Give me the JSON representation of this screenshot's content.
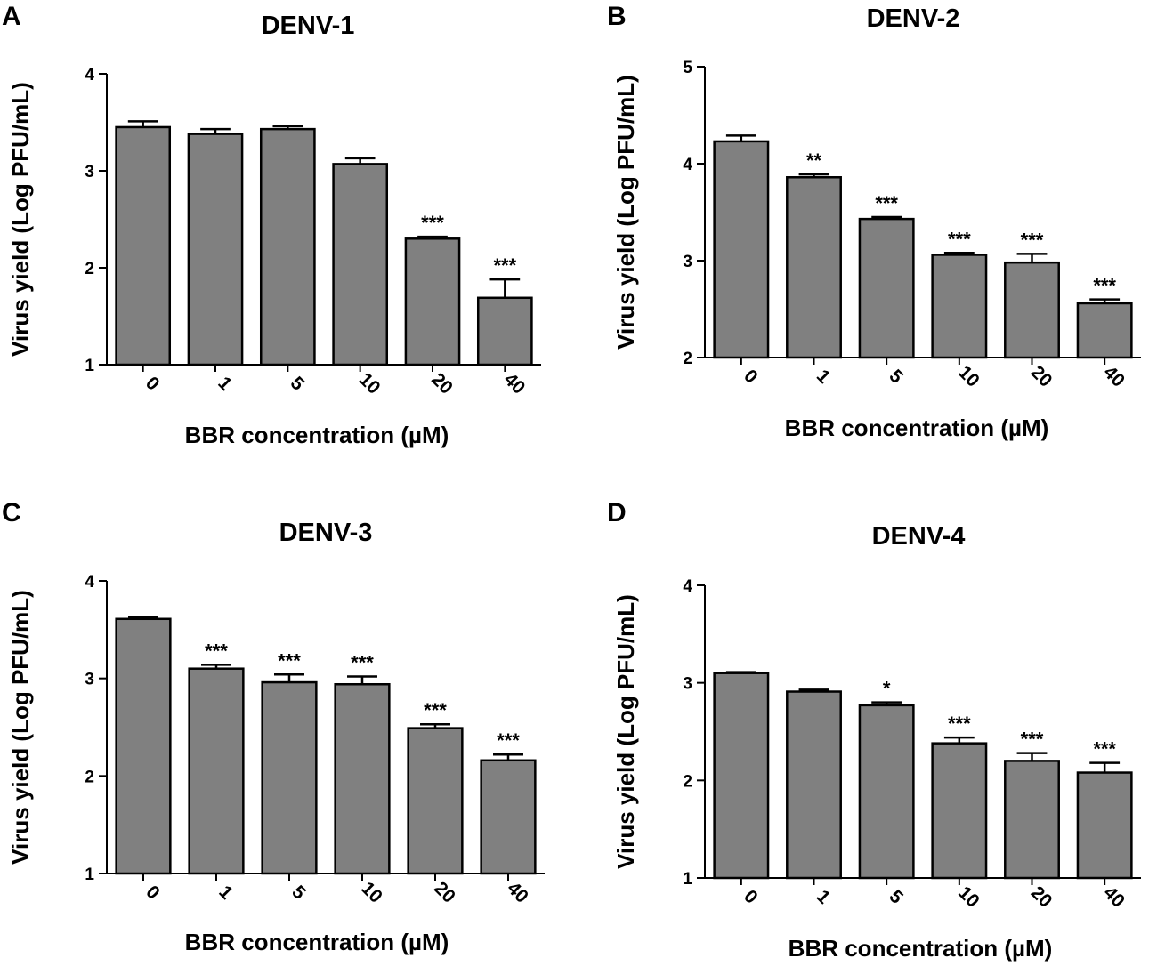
{
  "chart_data": [
    {
      "type": "bar",
      "panel": "A",
      "title": "DENV-1",
      "xlabel": "BBR concentration (µM)",
      "ylabel": "Virus yield (Log PFU/mL)",
      "ylim": [
        1,
        4
      ],
      "yticks": [
        "1",
        "2",
        "3",
        "4"
      ],
      "categories": [
        "0",
        "1",
        "5",
        "10",
        "20",
        "40"
      ],
      "values": [
        3.45,
        3.38,
        3.43,
        3.07,
        2.3,
        1.69
      ],
      "errors": [
        0.06,
        0.05,
        0.03,
        0.06,
        0.02,
        0.19
      ],
      "significance": [
        "",
        "",
        "",
        "",
        "***",
        "***"
      ],
      "bar_color": "#808080"
    },
    {
      "type": "bar",
      "panel": "B",
      "title": "DENV-2",
      "xlabel": "BBR concentration (µM)",
      "ylabel": "Virus yield (Log PFU/mL)",
      "ylim": [
        2,
        5
      ],
      "yticks": [
        "2",
        "3",
        "4",
        "5"
      ],
      "categories": [
        "0",
        "1",
        "5",
        "10",
        "20",
        "40"
      ],
      "values": [
        4.23,
        3.86,
        3.43,
        3.06,
        2.98,
        2.56
      ],
      "errors": [
        0.06,
        0.03,
        0.02,
        0.02,
        0.09,
        0.04
      ],
      "significance": [
        "",
        "**",
        "***",
        "***",
        "***",
        "***"
      ],
      "bar_color": "#808080"
    },
    {
      "type": "bar",
      "panel": "C",
      "title": "DENV-3",
      "xlabel": "BBR concentration (µM)",
      "ylabel": "Virus yield (Log PFU/mL)",
      "ylim": [
        1,
        4
      ],
      "yticks": [
        "1",
        "2",
        "3",
        "4"
      ],
      "categories": [
        "0",
        "1",
        "5",
        "10",
        "20",
        "40"
      ],
      "values": [
        3.61,
        3.1,
        2.96,
        2.94,
        2.49,
        2.16
      ],
      "errors": [
        0.02,
        0.04,
        0.08,
        0.08,
        0.04,
        0.06
      ],
      "significance": [
        "",
        "***",
        "***",
        "***",
        "***",
        "***"
      ],
      "bar_color": "#808080"
    },
    {
      "type": "bar",
      "panel": "D",
      "title": "DENV-4",
      "xlabel": "BBR concentration (µM)",
      "ylabel": "Virus yield (Log PFU/mL)",
      "ylim": [
        1,
        4
      ],
      "yticks": [
        "1",
        "2",
        "3",
        "4"
      ],
      "categories": [
        "0",
        "1",
        "5",
        "10",
        "20",
        "40"
      ],
      "values": [
        3.1,
        2.91,
        2.77,
        2.38,
        2.2,
        2.08
      ],
      "errors": [
        0.01,
        0.02,
        0.03,
        0.06,
        0.08,
        0.1
      ],
      "significance": [
        "",
        "",
        "*",
        "***",
        "***",
        "***"
      ],
      "bar_color": "#808080"
    }
  ]
}
